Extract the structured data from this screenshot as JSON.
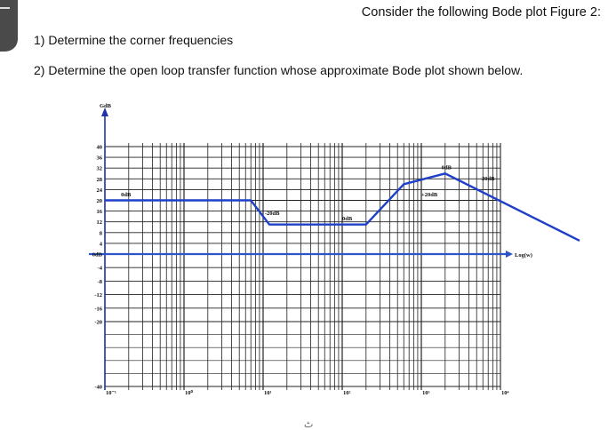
{
  "header": {
    "title": "Consider the following Bode plot Figure 2:"
  },
  "questions": [
    "1)  Determine the corner frequencies",
    "2)  Determine the open loop transfer function whose approximate Bode plot shown below."
  ],
  "stray_mark": "ٹ",
  "colors": {
    "curve": "#1e40c8",
    "zero_axis": "#2b55c8",
    "grid": "#222222",
    "axis": "#2233aa"
  },
  "chart_data": {
    "type": "line",
    "title": "",
    "xlabel": "Log(w)",
    "ylabel": "GdB",
    "x_scale": "log",
    "xlim": [
      0.01,
      10000
    ],
    "ylim": [
      -40,
      40
    ],
    "x_tick_labels": [
      "10⁻¹",
      "10⁰",
      "10¹",
      "10²",
      "10³",
      "10⁴"
    ],
    "y_tick_values": [
      40,
      36,
      32,
      28,
      24,
      20,
      16,
      12,
      8,
      4,
      0,
      -4,
      -8,
      -12,
      -16,
      -20,
      -40
    ],
    "y_tick_labels": [
      "40",
      "36",
      "32",
      "28",
      "24",
      "20",
      "16",
      "12",
      "8",
      "4",
      "0dB",
      "-4",
      "-8",
      "-12",
      "-16",
      "-20",
      "-40"
    ],
    "grid": true,
    "series": [
      {
        "x": [
          0.01,
          0.7,
          1.2,
          20,
          60,
          200,
          10000
        ],
        "y": [
          20,
          20,
          11,
          11,
          26,
          30,
          5
        ]
      }
    ],
    "annotations": [
      {
        "text": "0dB",
        "x": 0.016,
        "y": 21.5
      },
      {
        "text": "-20dB",
        "x": 1.05,
        "y": 14.5
      },
      {
        "text": "0dB",
        "x": 10,
        "y": 12.5
      },
      {
        "text": "+20dB",
        "x": 100,
        "y": 21.5
      },
      {
        "text": "0dB",
        "x": 180,
        "y": 31.5
      },
      {
        "text": "-20dB",
        "x": 550,
        "y": 27.5
      }
    ]
  }
}
